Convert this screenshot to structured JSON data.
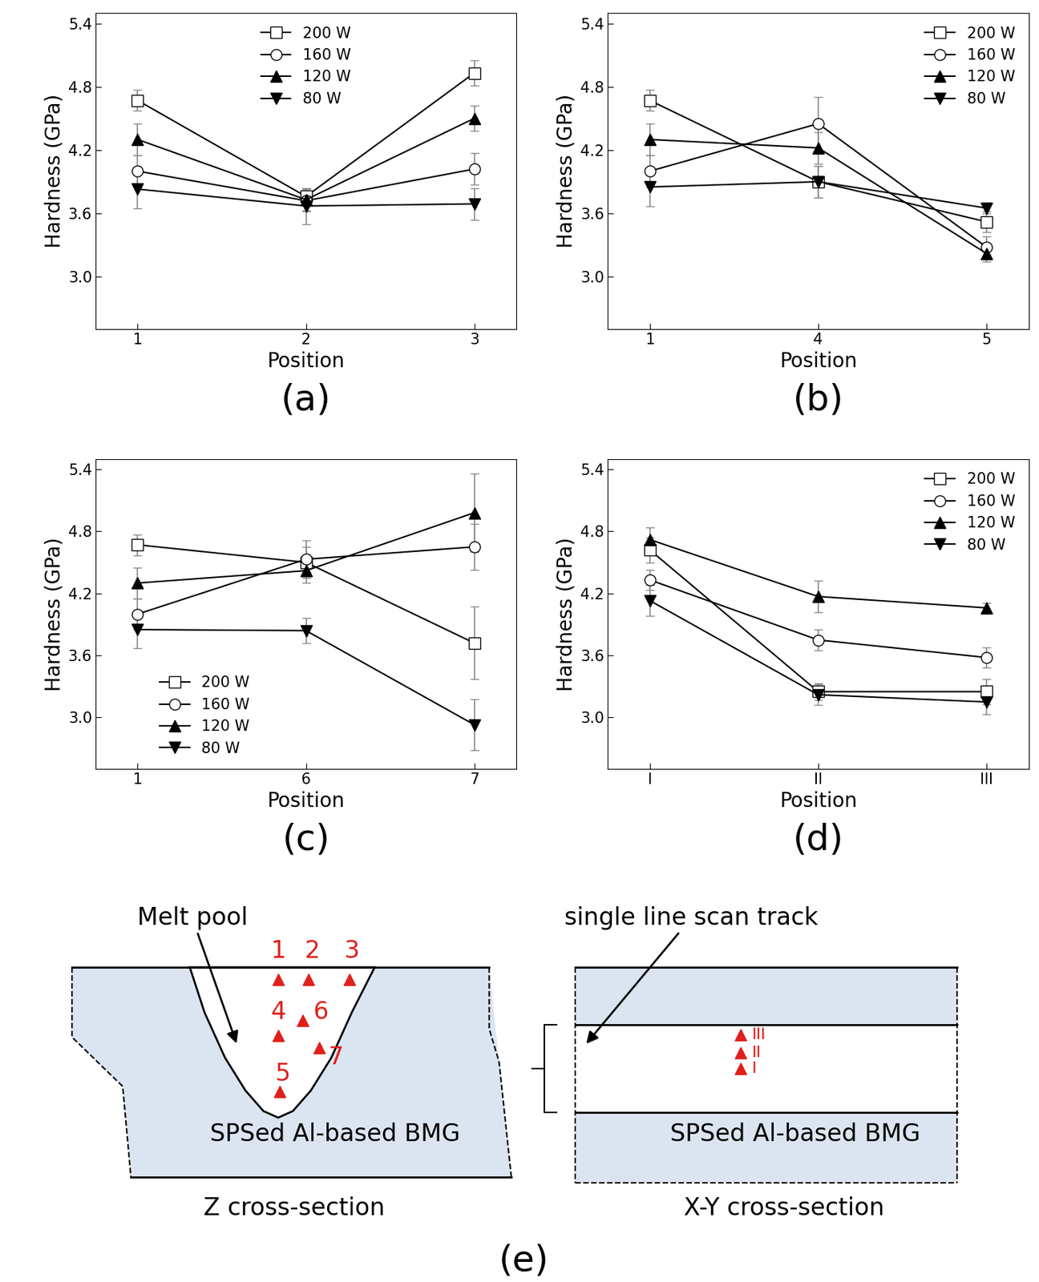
{
  "chart_data": [
    {
      "type": "line",
      "title": "(a)",
      "x_label": "Position",
      "y_label": "Hardness (GPa)",
      "categories": [
        "1",
        "2",
        "3"
      ],
      "ylim": [
        2.5,
        5.5
      ],
      "yticks": [
        3.0,
        3.6,
        4.2,
        4.8,
        5.4
      ],
      "legend": "upper center",
      "series": [
        {
          "name": "200 W",
          "color": "#000000",
          "marker": "open-square",
          "values": [
            4.67,
            3.76,
            4.93
          ],
          "errors": [
            0.1,
            0.08,
            0.12
          ]
        },
        {
          "name": "160 W",
          "color": "#000000",
          "marker": "open-circle",
          "values": [
            4.0,
            3.72,
            4.02
          ],
          "errors": [
            0.15,
            0.1,
            0.15
          ]
        },
        {
          "name": "120 W",
          "color": "#000000",
          "marker": "filled-triangle-up",
          "values": [
            4.3,
            3.73,
            4.5
          ],
          "errors": [
            0.15,
            0.1,
            0.12
          ]
        },
        {
          "name": "80 W",
          "color": "#000000",
          "marker": "filled-triangle-down",
          "values": [
            3.83,
            3.67,
            3.69
          ],
          "errors": [
            0.18,
            0.17,
            0.15
          ]
        }
      ]
    },
    {
      "type": "line",
      "title": "(b)",
      "x_label": "Position",
      "y_label": "Hardness (GPa)",
      "categories": [
        "1",
        "4",
        "5"
      ],
      "ylim": [
        2.5,
        5.5
      ],
      "yticks": [
        3.0,
        3.6,
        4.2,
        4.8,
        5.4
      ],
      "legend": "upper right",
      "series": [
        {
          "name": "200 W",
          "color": "#000000",
          "marker": "open-square",
          "values": [
            4.67,
            3.9,
            3.52
          ],
          "errors": [
            0.1,
            0.15,
            0.1
          ]
        },
        {
          "name": "160 W",
          "color": "#000000",
          "marker": "open-circle",
          "values": [
            4.0,
            4.45,
            3.28
          ],
          "errors": [
            0.15,
            0.25,
            0.1
          ]
        },
        {
          "name": "120 W",
          "color": "#000000",
          "marker": "filled-triangle-up",
          "values": [
            4.3,
            4.22,
            3.22
          ],
          "errors": [
            0.15,
            0.15,
            0.08
          ]
        },
        {
          "name": "80 W",
          "color": "#000000",
          "marker": "filled-triangle-down",
          "values": [
            3.85,
            3.9,
            3.65
          ],
          "errors": [
            0.18,
            0.15,
            0.05
          ]
        }
      ]
    },
    {
      "type": "line",
      "title": "(c)",
      "x_label": "Position",
      "y_label": "Hardness (GPa)",
      "categories": [
        "1",
        "6",
        "7"
      ],
      "ylim": [
        2.5,
        5.5
      ],
      "yticks": [
        3.0,
        3.6,
        4.2,
        4.8,
        5.4
      ],
      "legend": "lower left",
      "series": [
        {
          "name": "200 W",
          "color": "#000000",
          "marker": "open-square",
          "values": [
            4.67,
            4.5,
            3.72
          ],
          "errors": [
            0.1,
            0.15,
            0.35
          ]
        },
        {
          "name": "160 W",
          "color": "#000000",
          "marker": "open-circle",
          "values": [
            4.0,
            4.53,
            4.65
          ],
          "errors": [
            0.15,
            0.18,
            0.22
          ]
        },
        {
          "name": "120 W",
          "color": "#000000",
          "marker": "filled-triangle-up",
          "values": [
            4.3,
            4.42,
            4.98
          ],
          "errors": [
            0.15,
            0.12,
            0.38
          ]
        },
        {
          "name": "80 W",
          "color": "#000000",
          "marker": "filled-triangle-down",
          "values": [
            3.85,
            3.84,
            2.93
          ],
          "errors": [
            0.18,
            0.12,
            0.25
          ]
        }
      ]
    },
    {
      "type": "line",
      "title": "(d)",
      "x_label": "Position",
      "y_label": "Hardness (GPa)",
      "categories": [
        "I",
        "II",
        "III"
      ],
      "ylim": [
        2.5,
        5.5
      ],
      "yticks": [
        3.0,
        3.6,
        4.2,
        4.8,
        5.4
      ],
      "legend": "upper right",
      "series": [
        {
          "name": "200 W",
          "color": "#000000",
          "marker": "open-square",
          "values": [
            4.62,
            3.25,
            3.25
          ],
          "errors": [
            0.12,
            0.08,
            0.12
          ]
        },
        {
          "name": "160 W",
          "color": "#000000",
          "marker": "open-circle",
          "values": [
            4.33,
            3.75,
            3.58
          ],
          "errors": [
            0.1,
            0.1,
            0.1
          ]
        },
        {
          "name": "120 W",
          "color": "#000000",
          "marker": "filled-triangle-up",
          "values": [
            4.72,
            4.17,
            4.06
          ],
          "errors": [
            0.12,
            0.15,
            0.05
          ]
        },
        {
          "name": "80 W",
          "color": "#000000",
          "marker": "filled-triangle-down",
          "values": [
            4.13,
            3.22,
            3.15
          ],
          "errors": [
            0.15,
            0.1,
            0.12
          ]
        }
      ]
    }
  ],
  "diagram": {
    "panel_label": "(e)",
    "left": {
      "melt_pool_label": "Melt pool",
      "substrate_label": "SPSed Al-based BMG",
      "caption": "Z cross-section",
      "points": [
        "1",
        "2",
        "3",
        "4",
        "6",
        "7",
        "5"
      ]
    },
    "right": {
      "track_label": "single line scan track",
      "substrate_label": "SPSed Al-based BMG",
      "caption": "X-Y cross-section",
      "points": [
        "III",
        "II",
        "I"
      ]
    }
  }
}
